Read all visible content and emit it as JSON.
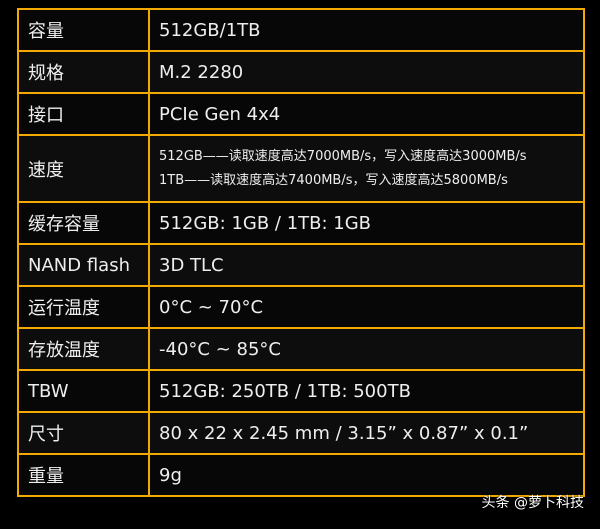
{
  "rows": [
    {
      "key": "容量",
      "value": "512GB/1TB"
    },
    {
      "key": "规格",
      "value": "M.2 2280"
    },
    {
      "key": "接口",
      "value": "PCIe Gen 4x4"
    },
    {
      "key": "速度",
      "lines": [
        "512GB——读取速度高达7000MB/s，写入速度高达3000MB/s",
        "1TB——读取速度高达7400MB/s，写入速度高达5800MB/s"
      ]
    },
    {
      "key": "缓存容量",
      "value": "512GB: 1GB / 1TB: 1GB"
    },
    {
      "key": "NAND flash",
      "value": "3D TLC"
    },
    {
      "key": "运行温度",
      "value": "0°C ~ 70°C"
    },
    {
      "key": "存放温度",
      "value": "-40°C ~ 85°C"
    },
    {
      "key": "TBW",
      "value": "512GB: 250TB / 1TB: 500TB"
    },
    {
      "key": "尺寸",
      "value": "80 x 22 x 2.45 mm / 3.15”  x 0.87”  x 0.1”"
    },
    {
      "key": "重量",
      "value": "9g"
    }
  ],
  "watermark": "头条 @萝卜科技",
  "colors": {
    "border": "#f2a900",
    "background": "#000000",
    "text": "#eeeeee"
  }
}
